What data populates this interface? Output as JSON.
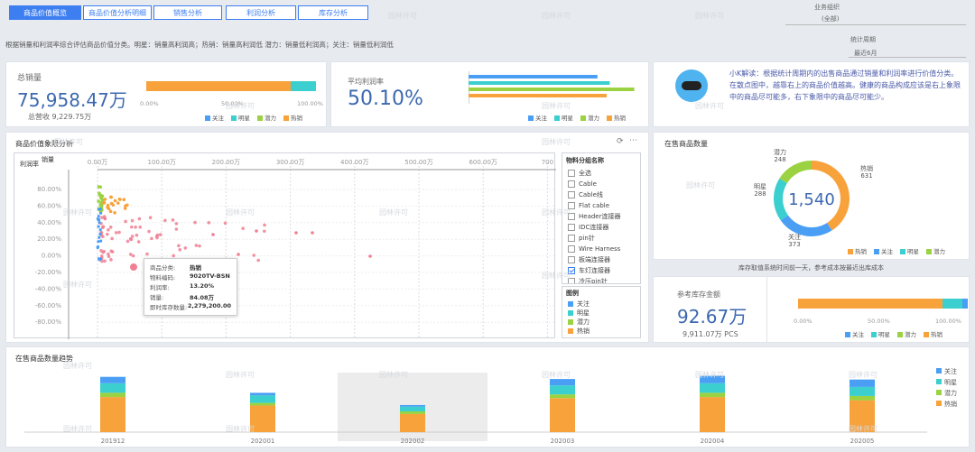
{
  "tabs": [
    "商品价值概览",
    "商品价值分析明细",
    "销售分析",
    "利润分析",
    "库存分析"
  ],
  "filters": {
    "org_label": "业务组织",
    "org_value": "(全部)",
    "period_label": "统计周期",
    "period_value": "最近6月"
  },
  "subtitle": "根据销量和利润率综合评估商品价值分类。明星：销量高利润高；热销：销量高利润低 潜力：销量低利润高；关注：销量低利润低",
  "sales": {
    "title": "总销量",
    "value": "75,958.47万",
    "sub": "总营收 9,229.75万",
    "ticks": [
      "0.00%",
      "50.00%",
      "100.00%"
    ]
  },
  "profit": {
    "title": "平均利润率",
    "value": "50.10%"
  },
  "legend4": [
    "关注",
    "明星",
    "潜力",
    "热销"
  ],
  "colors": {
    "关注": "#4a9ff5",
    "明星": "#3ccfcf",
    "潜力": "#9bd241",
    "热销": "#f7a23b"
  },
  "bar_share": {
    "热销": 0.85,
    "明星": 0.15
  },
  "profit_bars": [
    {
      "name": "关注",
      "value": 0.42
    },
    {
      "name": "明星",
      "value": 0.46
    },
    {
      "name": "潜力",
      "value": 0.54
    },
    {
      "name": "热销",
      "value": 0.45
    }
  ],
  "insight": {
    "text": "小K解读：根据统计周期内的出售商品通过销量和利润率进行价值分类。在散点图中，越靠右上的商品价值越高。健康的商品构成应该是右上象限中的商品尽可能多，右下象限中的商品尽可能少。"
  },
  "scatter": {
    "title": "商品价值象限分析",
    "ylabel": "利润率",
    "xlabel": "销量",
    "xticks": [
      "0.00万",
      "100.00万",
      "200.00万",
      "300.00万",
      "400.00万",
      "500.00万",
      "600.00万",
      "700"
    ],
    "yticks": [
      "80.00%",
      "60.00%",
      "40.00%",
      "20.00%",
      "0.00%",
      "-20.00%",
      "-40.00%",
      "-60.00%",
      "-80.00%"
    ]
  },
  "tooltip": {
    "rows": [
      [
        "商品分类:",
        "热销"
      ],
      [
        "物料编码:",
        "9020TV-BSN"
      ],
      [
        "利润率:",
        "13.20%"
      ],
      [
        "销量:",
        "84.08万"
      ],
      [
        "即时库存数量:",
        "2,279,200.00"
      ]
    ]
  },
  "filter_panel": {
    "title": "物料分组名称",
    "items": [
      "全选",
      "Cable",
      "Cable线",
      "Flat cable",
      "Header连接器",
      "IDC连接器",
      "pin针",
      "Wire Harness",
      "板端连接器",
      "车灯连接器",
      "冷压pin针"
    ],
    "checked": "车灯连接器",
    "legend_title": "图例"
  },
  "donut": {
    "title": "在售商品数量",
    "total": "1,540",
    "labels": [
      {
        "name": "热销",
        "value": 631
      },
      {
        "name": "关注",
        "value": 373
      },
      {
        "name": "明星",
        "value": 288
      },
      {
        "name": "潜力",
        "value": 248
      }
    ]
  },
  "stock": {
    "note": "库存取值系统时间前一天，参考成本按最近出库成本",
    "title": "参考库存金额",
    "value": "92.67万",
    "sub": "9,911.07万 PCS",
    "ticks": [
      "0.00%",
      "50.00%",
      "100.00%"
    ],
    "share": {
      "热销": 0.85,
      "明星": 0.12,
      "关注": 0.03
    }
  },
  "trend": {
    "title": "在售商品数量趋势",
    "periods": [
      "201912",
      "202001",
      "202002",
      "202003",
      "202004",
      "202005"
    ],
    "stack": [
      {
        "热销": 330,
        "潜力": 40,
        "明星": 90,
        "关注": 60
      },
      {
        "热销": 250,
        "潜力": 25,
        "明星": 70,
        "关注": 25
      },
      {
        "热销": 170,
        "潜力": 25,
        "明星": 45,
        "关注": 15
      },
      {
        "热销": 320,
        "潜力": 35,
        "明星": 85,
        "关注": 60
      },
      {
        "热销": 330,
        "潜力": 40,
        "明星": 90,
        "关注": 70
      },
      {
        "热销": 300,
        "潜力": 40,
        "明星": 85,
        "关注": 70
      }
    ]
  },
  "watermark": "园林许可"
}
